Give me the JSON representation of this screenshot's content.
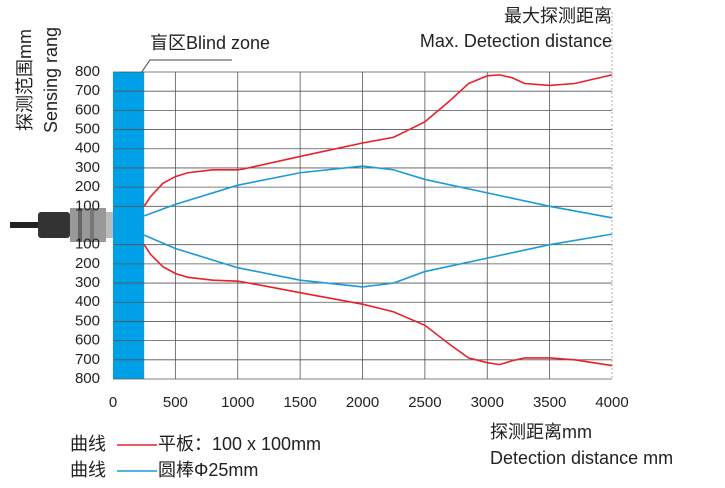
{
  "chart_data": {
    "type": "line",
    "title": "最大探测距离",
    "subtitle": "Max. Detection distance",
    "y_label": [
      "探测范围mm",
      "Sensing rang"
    ],
    "x_label": [
      "探测距离mm",
      "Detection distance mm"
    ],
    "annotation": "盲区Blind zone",
    "blind_zone": [
      0,
      250
    ],
    "blind_zone_color": "#00a0e9",
    "legend_prefix": "曲线",
    "xlim": [
      0,
      4000
    ],
    "xticks": [
      0,
      500,
      1000,
      1500,
      2000,
      2500,
      3000,
      3500,
      4000
    ],
    "ylim": [
      -800,
      800
    ],
    "yticks": [
      800,
      700,
      600,
      500,
      400,
      300,
      200,
      100,
      {
        "value": -100,
        "label": "100"
      },
      {
        "value": -200,
        "label": "200"
      },
      {
        "value": -300,
        "label": "300"
      },
      {
        "value": -400,
        "label": "400"
      },
      {
        "value": -500,
        "label": "500"
      },
      {
        "value": -600,
        "label": "600"
      },
      {
        "value": -700,
        "label": "700"
      },
      {
        "value": -800,
        "label": "800"
      }
    ],
    "grid": true,
    "series": [
      {
        "name": "平板：100 x 100mm",
        "color": "#e8202a",
        "x": [
          250,
          300,
          400,
          500,
          600,
          800,
          1000,
          1050,
          1500,
          2000,
          2250,
          2500,
          2700,
          2850,
          3000,
          3100,
          3200,
          3300,
          3500,
          3700,
          4000
        ],
        "values": [
          100,
          150,
          220,
          255,
          275,
          290,
          290,
          295,
          360,
          430,
          460,
          540,
          650,
          740,
          780,
          785,
          770,
          740,
          730,
          740,
          785
        ],
        "x2": [
          250,
          300,
          400,
          500,
          600,
          800,
          1000,
          1050,
          1500,
          2000,
          2250,
          2500,
          2700,
          2850,
          3000,
          3100,
          3200,
          3300,
          3500,
          3700,
          4000
        ],
        "values2": [
          -100,
          -150,
          -215,
          -250,
          -270,
          -285,
          -290,
          -295,
          -350,
          -410,
          -450,
          -520,
          -620,
          -690,
          -715,
          -725,
          -705,
          -690,
          -690,
          -700,
          -730
        ]
      },
      {
        "name": "圆棒Φ25mm",
        "color": "#1a9ad8",
        "x": [
          250,
          500,
          1000,
          1500,
          2000,
          2250,
          2500,
          3000,
          3500,
          4000
        ],
        "values": [
          50,
          110,
          210,
          275,
          310,
          290,
          240,
          170,
          100,
          40
        ],
        "x2": [
          250,
          500,
          1000,
          1500,
          2000,
          2250,
          2500,
          3000,
          3500,
          4000
        ],
        "values2": [
          -50,
          -120,
          -220,
          -285,
          -320,
          -300,
          -240,
          -170,
          -100,
          -45
        ]
      }
    ]
  }
}
